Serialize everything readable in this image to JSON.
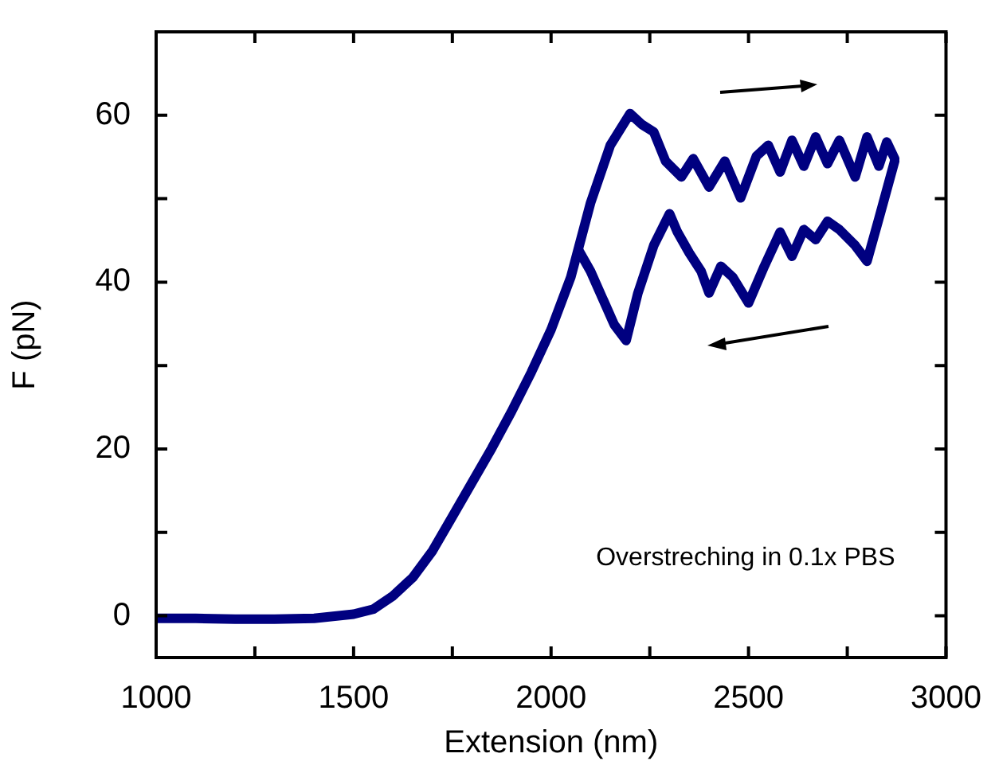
{
  "chart_data": {
    "type": "line",
    "xlabel": "Extension (nm)",
    "ylabel": "F (pN)",
    "annotations": [
      "Overstreching in 0.1x PBS"
    ],
    "xlim": [
      1000,
      3000
    ],
    "xticks": [
      1000,
      {
        "value": 1250,
        "label": null
      },
      1500,
      {
        "value": 1750,
        "label": null
      },
      2000,
      {
        "value": 2250,
        "label": null
      },
      2500,
      {
        "value": 2750,
        "label": null
      },
      3000
    ],
    "ylim": [
      -5,
      70
    ],
    "yticks": [
      0,
      {
        "value": 10,
        "label": null
      },
      20,
      {
        "value": 30,
        "label": null
      },
      40,
      {
        "value": 50,
        "label": null
      },
      60
    ],
    "grid": false,
    "legend": false,
    "marker": "none",
    "line_style": "solid",
    "series": [
      {
        "color": "#000080",
        "x": [
          1000,
          1100,
          1200,
          1300,
          1400,
          1500,
          1550,
          1600,
          1650,
          1700,
          1750,
          1800,
          1850,
          1900,
          1950,
          2000,
          2050,
          2100,
          2150,
          2200,
          2230,
          2260,
          2290,
          2330,
          2360,
          2400,
          2440,
          2480,
          2520,
          2550,
          2580,
          2610,
          2640,
          2670,
          2700,
          2730,
          2770,
          2800,
          2830,
          2850,
          2870
        ],
        "values": [
          -0.3,
          -0.3,
          -0.4,
          -0.4,
          -0.3,
          0.2,
          0.8,
          2.4,
          4.6,
          7.8,
          11.9,
          16,
          20.1,
          24.5,
          29.2,
          34.3,
          40.6,
          49.5,
          56.4,
          60.2,
          58.9,
          58,
          54.5,
          52.6,
          54.8,
          51.4,
          54.5,
          50.1,
          55.1,
          56.4,
          53.2,
          57,
          53.9,
          57.4,
          54.2,
          57,
          52.6,
          57.4,
          53.9,
          56.8,
          54.8
        ]
      },
      {
        "color": "#000080",
        "x": [
          2870,
          2830,
          2800,
          2770,
          2730,
          2700,
          2670,
          2640,
          2610,
          2580,
          2540,
          2500,
          2460,
          2430,
          2400,
          2380,
          2350,
          2320,
          2300,
          2260,
          2220,
          2190,
          2160,
          2130,
          2100,
          2070
        ],
        "values": [
          54.5,
          47.6,
          42.5,
          44.4,
          46.3,
          47.3,
          45.1,
          46.3,
          43.1,
          46,
          41.9,
          37.5,
          40.6,
          41.9,
          38.7,
          41.3,
          43.5,
          46,
          48.2,
          44.4,
          38.7,
          33,
          34.9,
          38.1,
          41.3,
          43.8
        ]
      }
    ]
  }
}
